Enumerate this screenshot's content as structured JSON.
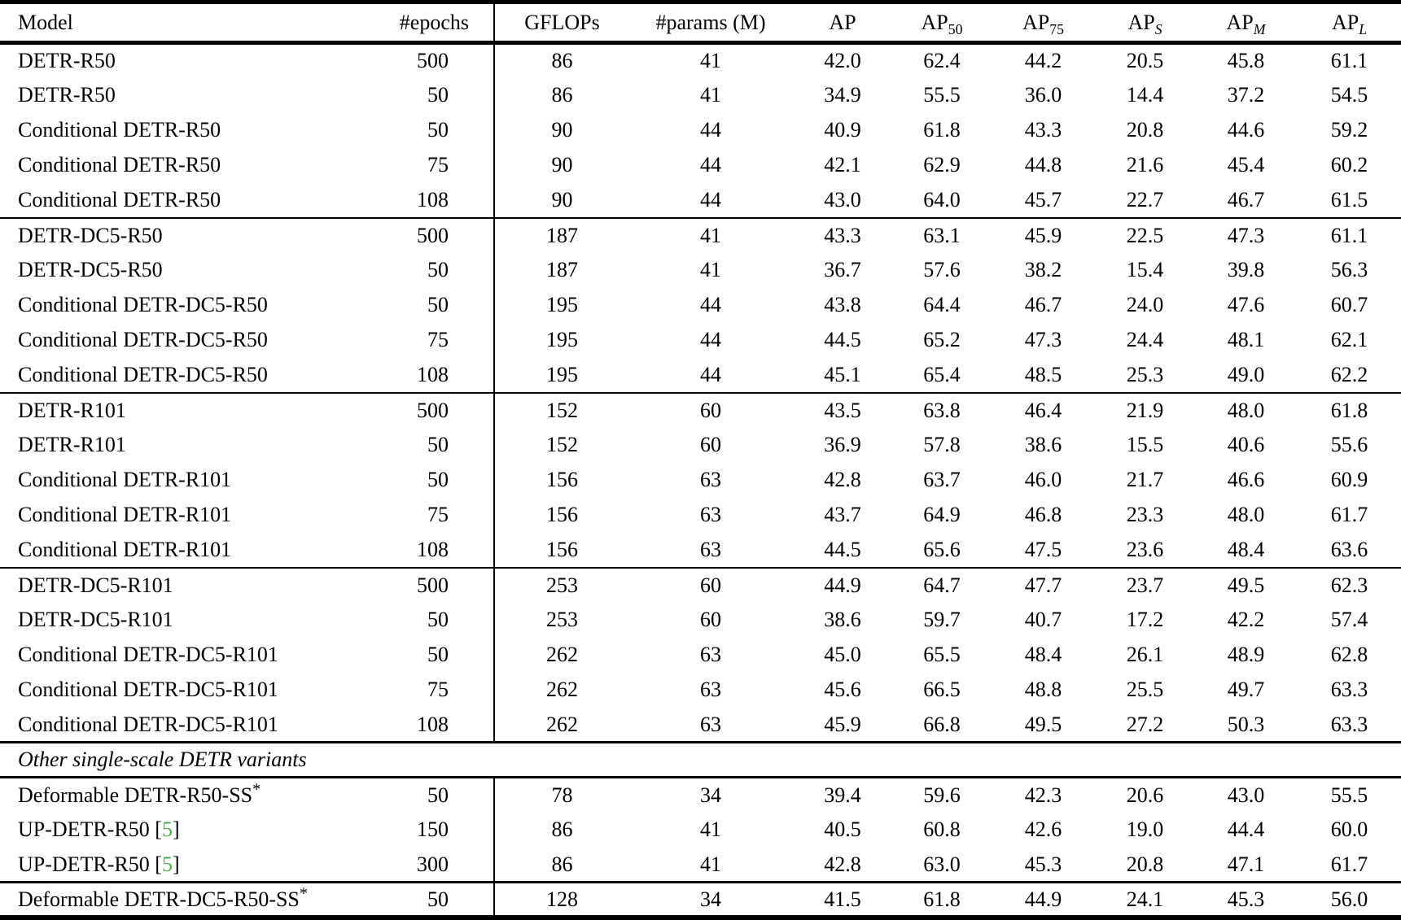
{
  "colors": {
    "citation_green": "#4fae4f"
  },
  "table": {
    "columns": [
      {
        "key": "model",
        "label": "Model"
      },
      {
        "key": "epochs",
        "label": "#epochs"
      },
      {
        "key": "gflops",
        "label": "GFLOPs"
      },
      {
        "key": "params",
        "label": "#params (M)"
      },
      {
        "key": "ap",
        "label": "AP"
      },
      {
        "key": "ap50",
        "label": "AP",
        "sub": "50",
        "sub_italic": false
      },
      {
        "key": "ap75",
        "label": "AP",
        "sub": "75",
        "sub_italic": false
      },
      {
        "key": "aps",
        "label": "AP",
        "sub": "S",
        "sub_italic": true
      },
      {
        "key": "apm",
        "label": "AP",
        "sub": "M",
        "sub_italic": true
      },
      {
        "key": "apl",
        "label": "AP",
        "sub": "L",
        "sub_italic": true
      }
    ],
    "sections": [
      {
        "rows": [
          {
            "model": "DETR-R50",
            "epochs": "500",
            "gflops": "86",
            "params": "41",
            "ap": "42.0",
            "ap50": "62.4",
            "ap75": "44.2",
            "aps": "20.5",
            "apm": "45.8",
            "apl": "61.1"
          },
          {
            "model": "DETR-R50",
            "epochs": "50",
            "gflops": "86",
            "params": "41",
            "ap": "34.9",
            "ap50": "55.5",
            "ap75": "36.0",
            "aps": "14.4",
            "apm": "37.2",
            "apl": "54.5"
          },
          {
            "model": "Conditional DETR-R50",
            "epochs": "50",
            "gflops": "90",
            "params": "44",
            "ap": "40.9",
            "ap50": "61.8",
            "ap75": "43.3",
            "aps": "20.8",
            "apm": "44.6",
            "apl": "59.2"
          },
          {
            "model": "Conditional DETR-R50",
            "epochs": "75",
            "gflops": "90",
            "params": "44",
            "ap": "42.1",
            "ap50": "62.9",
            "ap75": "44.8",
            "aps": "21.6",
            "apm": "45.4",
            "apl": "60.2"
          },
          {
            "model": "Conditional DETR-R50",
            "epochs": "108",
            "gflops": "90",
            "params": "44",
            "ap": "43.0",
            "ap50": "64.0",
            "ap75": "45.7",
            "aps": "22.7",
            "apm": "46.7",
            "apl": "61.5"
          }
        ]
      },
      {
        "rows": [
          {
            "model": "DETR-DC5-R50",
            "epochs": "500",
            "gflops": "187",
            "params": "41",
            "ap": "43.3",
            "ap50": "63.1",
            "ap75": "45.9",
            "aps": "22.5",
            "apm": "47.3",
            "apl": "61.1"
          },
          {
            "model": "DETR-DC5-R50",
            "epochs": "50",
            "gflops": "187",
            "params": "41",
            "ap": "36.7",
            "ap50": "57.6",
            "ap75": "38.2",
            "aps": "15.4",
            "apm": "39.8",
            "apl": "56.3"
          },
          {
            "model": "Conditional DETR-DC5-R50",
            "epochs": "50",
            "gflops": "195",
            "params": "44",
            "ap": "43.8",
            "ap50": "64.4",
            "ap75": "46.7",
            "aps": "24.0",
            "apm": "47.6",
            "apl": "60.7"
          },
          {
            "model": "Conditional DETR-DC5-R50",
            "epochs": "75",
            "gflops": "195",
            "params": "44",
            "ap": "44.5",
            "ap50": "65.2",
            "ap75": "47.3",
            "aps": "24.4",
            "apm": "48.1",
            "apl": "62.1"
          },
          {
            "model": "Conditional DETR-DC5-R50",
            "epochs": "108",
            "gflops": "195",
            "params": "44",
            "ap": "45.1",
            "ap50": "65.4",
            "ap75": "48.5",
            "aps": "25.3",
            "apm": "49.0",
            "apl": "62.2"
          }
        ]
      },
      {
        "rows": [
          {
            "model": "DETR-R101",
            "epochs": "500",
            "gflops": "152",
            "params": "60",
            "ap": "43.5",
            "ap50": "63.8",
            "ap75": "46.4",
            "aps": "21.9",
            "apm": "48.0",
            "apl": "61.8"
          },
          {
            "model": "DETR-R101",
            "epochs": "50",
            "gflops": "152",
            "params": "60",
            "ap": "36.9",
            "ap50": "57.8",
            "ap75": "38.6",
            "aps": "15.5",
            "apm": "40.6",
            "apl": "55.6"
          },
          {
            "model": "Conditional DETR-R101",
            "epochs": "50",
            "gflops": "156",
            "params": "63",
            "ap": "42.8",
            "ap50": "63.7",
            "ap75": "46.0",
            "aps": "21.7",
            "apm": "46.6",
            "apl": "60.9"
          },
          {
            "model": "Conditional DETR-R101",
            "epochs": "75",
            "gflops": "156",
            "params": "63",
            "ap": "43.7",
            "ap50": "64.9",
            "ap75": "46.8",
            "aps": "23.3",
            "apm": "48.0",
            "apl": "61.7"
          },
          {
            "model": "Conditional DETR-R101",
            "epochs": "108",
            "gflops": "156",
            "params": "63",
            "ap": "44.5",
            "ap50": "65.6",
            "ap75": "47.5",
            "aps": "23.6",
            "apm": "48.4",
            "apl": "63.6"
          }
        ]
      },
      {
        "rows": [
          {
            "model": "DETR-DC5-R101",
            "epochs": "500",
            "gflops": "253",
            "params": "60",
            "ap": "44.9",
            "ap50": "64.7",
            "ap75": "47.7",
            "aps": "23.7",
            "apm": "49.5",
            "apl": "62.3"
          },
          {
            "model": "DETR-DC5-R101",
            "epochs": "50",
            "gflops": "253",
            "params": "60",
            "ap": "38.6",
            "ap50": "59.7",
            "ap75": "40.7",
            "aps": "17.2",
            "apm": "42.2",
            "apl": "57.4"
          },
          {
            "model": "Conditional DETR-DC5-R101",
            "epochs": "50",
            "gflops": "262",
            "params": "63",
            "ap": "45.0",
            "ap50": "65.5",
            "ap75": "48.4",
            "aps": "26.1",
            "apm": "48.9",
            "apl": "62.8"
          },
          {
            "model": "Conditional DETR-DC5-R101",
            "epochs": "75",
            "gflops": "262",
            "params": "63",
            "ap": "45.6",
            "ap50": "66.5",
            "ap75": "48.8",
            "aps": "25.5",
            "apm": "49.7",
            "apl": "63.3"
          },
          {
            "model": "Conditional DETR-DC5-R101",
            "epochs": "108",
            "gflops": "262",
            "params": "63",
            "ap": "45.9",
            "ap50": "66.8",
            "ap75": "49.5",
            "aps": "27.2",
            "apm": "50.3",
            "apl": "63.3"
          }
        ]
      },
      {
        "title": "Other single-scale DETR variants",
        "rows": [
          {
            "model": "Deformable DETR-R50-SS",
            "sup": "*",
            "epochs": "50",
            "gflops": "78",
            "params": "34",
            "ap": "39.4",
            "ap50": "59.6",
            "ap75": "42.3",
            "aps": "20.6",
            "apm": "43.0",
            "apl": "55.5"
          },
          {
            "model": "UP-DETR-R50",
            "cite": "5",
            "epochs": "150",
            "gflops": "86",
            "params": "41",
            "ap": "40.5",
            "ap50": "60.8",
            "ap75": "42.6",
            "aps": "19.0",
            "apm": "44.4",
            "apl": "60.0"
          },
          {
            "model": "UP-DETR-R50",
            "cite": "5",
            "epochs": "300",
            "gflops": "86",
            "params": "41",
            "ap": "42.8",
            "ap50": "63.0",
            "ap75": "45.3",
            "aps": "20.8",
            "apm": "47.1",
            "apl": "61.7"
          }
        ]
      },
      {
        "rows": [
          {
            "model": "Deformable DETR-DC5-R50-SS",
            "sup": "*",
            "epochs": "50",
            "gflops": "128",
            "params": "34",
            "ap": "41.5",
            "ap50": "61.8",
            "ap75": "44.9",
            "aps": "24.1",
            "apm": "45.3",
            "apl": "56.0"
          }
        ]
      }
    ]
  }
}
